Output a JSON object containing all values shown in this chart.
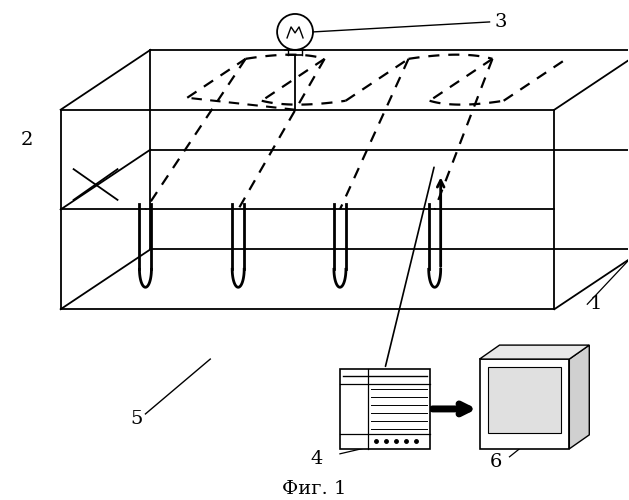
{
  "title": "Фиг. 1",
  "label_1": "1",
  "label_2": "2",
  "label_3": "3",
  "label_4": "4",
  "label_5": "5",
  "label_6": "6",
  "bg_color": "#ffffff",
  "line_color": "#000000",
  "figsize": [
    6.29,
    5.0
  ],
  "dpi": 100
}
